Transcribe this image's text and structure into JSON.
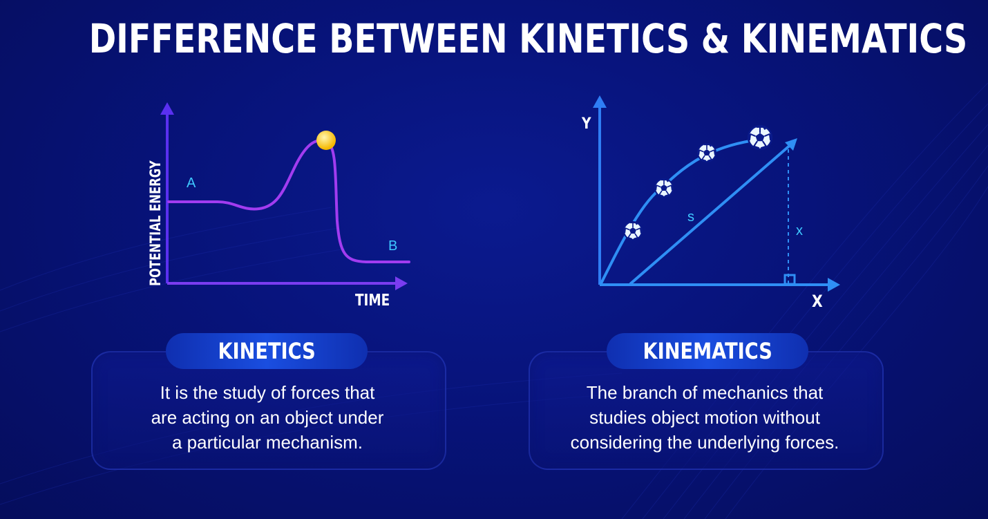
{
  "title": "DIFFERENCE BETWEEN KINETICS & KINEMATICS",
  "kinetics": {
    "label": "KINETICS",
    "description_lines": [
      "It is the study of forces that",
      "are acting on an object under",
      "a particular mechanism."
    ],
    "diagram": {
      "y_axis_label": "POTENTIAL ENERGY",
      "x_axis_label": "TIME",
      "point_a": "A",
      "point_b": "B"
    }
  },
  "kinematics": {
    "label": "KINEMATICS",
    "description_lines": [
      "The branch of mechanics that",
      "studies object motion without",
      "considering the underlying forces."
    ],
    "diagram": {
      "y_axis_label": "Y",
      "x_axis_label": "X",
      "displacement_label": "s",
      "height_label": "x"
    }
  },
  "colors": {
    "background": "#07137a",
    "kinetics_curve": "#a23cf0",
    "kinetics_axis": "#6a3cf5",
    "kinematics_line": "#2f8ff5",
    "peak_ball": "#ffd23a",
    "label_cyan": "#3fc8ff"
  }
}
